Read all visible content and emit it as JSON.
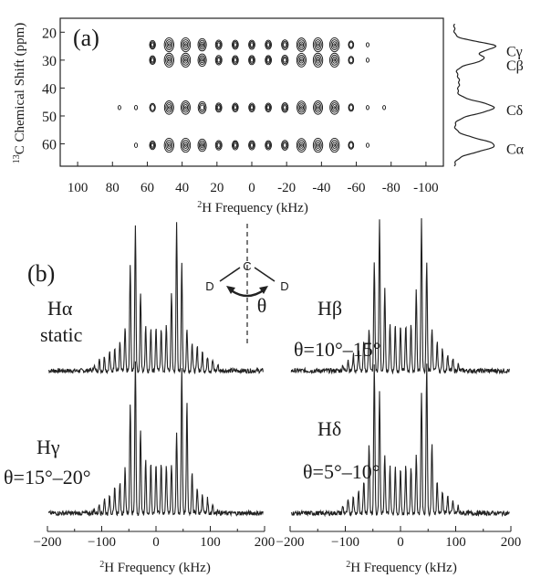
{
  "panel_a": {
    "label": "(a)",
    "ylabel_sup": "13",
    "ylabel_main": "C Chemical Shift (ppm)",
    "xlabel_sup": "2",
    "xlabel_main": "H Frequency (kHz)"
  },
  "panel_b": {
    "label": "(b)",
    "xlabel_sup": "2",
    "xlabel_main": "H Frequency (kHz)",
    "schematic": {
      "c": "C",
      "d_left": "D",
      "d_right": "D",
      "theta": "θ"
    }
  },
  "chart_data": [
    {
      "type": "contour_2d",
      "panel": "(a)",
      "xlabel": "2H Frequency (kHz)",
      "ylabel": "13C Chemical Shift (ppm)",
      "xlim": [
        110,
        -110
      ],
      "ylim": [
        15,
        68
      ],
      "x_ticks": [
        100,
        80,
        60,
        40,
        20,
        0,
        -20,
        -40,
        -60,
        -80,
        -100
      ],
      "x_tick_labels": [
        "100",
        "80",
        "60",
        "40",
        "20",
        "0",
        "-20",
        "-40",
        "-60",
        "-80",
        "-100"
      ],
      "y_ticks": [
        20,
        30,
        40,
        50,
        60
      ],
      "y_tick_labels": [
        "20",
        "30",
        "40",
        "50",
        "60"
      ],
      "sideband_spacing_khz": 9.5,
      "rows": [
        {
          "ppm": 24.5,
          "x_range": [
            -68,
            62
          ],
          "label": "Cγ"
        },
        {
          "ppm": 30,
          "x_range": [
            -68,
            62
          ],
          "label": "Cβ"
        },
        {
          "ppm": 47,
          "x_range": [
            -78,
            85
          ],
          "label": "Cδ"
        },
        {
          "ppm": 60.5,
          "x_range": [
            -68,
            70
          ],
          "label": "Cα"
        }
      ],
      "side_projection": {
        "peaks": [
          {
            "label": "Cγ",
            "ppm": 25
          },
          {
            "label": "Cβ",
            "ppm": 29.5
          },
          {
            "label": "Cδ",
            "ppm": 47
          },
          {
            "label": "Cα",
            "ppm": 60.5
          }
        ]
      }
    },
    {
      "type": "line",
      "panel": "(b)",
      "xlabel": "2H Frequency (kHz)",
      "xlim": [
        -200,
        200
      ],
      "x_ticks": [
        -200,
        -100,
        0,
        100,
        200
      ],
      "x_tick_labels": [
        "−200",
        "−100",
        "0",
        "100",
        "200"
      ],
      "sideband_spacing_khz": 9.5,
      "spectra": [
        {
          "name": "Hα",
          "annotation": "static",
          "position": "top-left",
          "horns_khz": [
            -40,
            40
          ],
          "edge_khz": 125
        },
        {
          "name": "Hβ",
          "annotation": "θ=10°–15°",
          "position": "top-right",
          "horns_khz": [
            -40,
            40
          ],
          "edge_khz": 115
        },
        {
          "name": "Hγ",
          "annotation": "θ=15°–20°",
          "position": "bottom-left",
          "horns_khz": [
            -40,
            50
          ],
          "edge_khz": 120
        },
        {
          "name": "Hδ",
          "annotation": "θ=5°–10°",
          "position": "bottom-right",
          "horns_khz": [
            -45,
            45
          ],
          "edge_khz": 115
        }
      ]
    }
  ]
}
